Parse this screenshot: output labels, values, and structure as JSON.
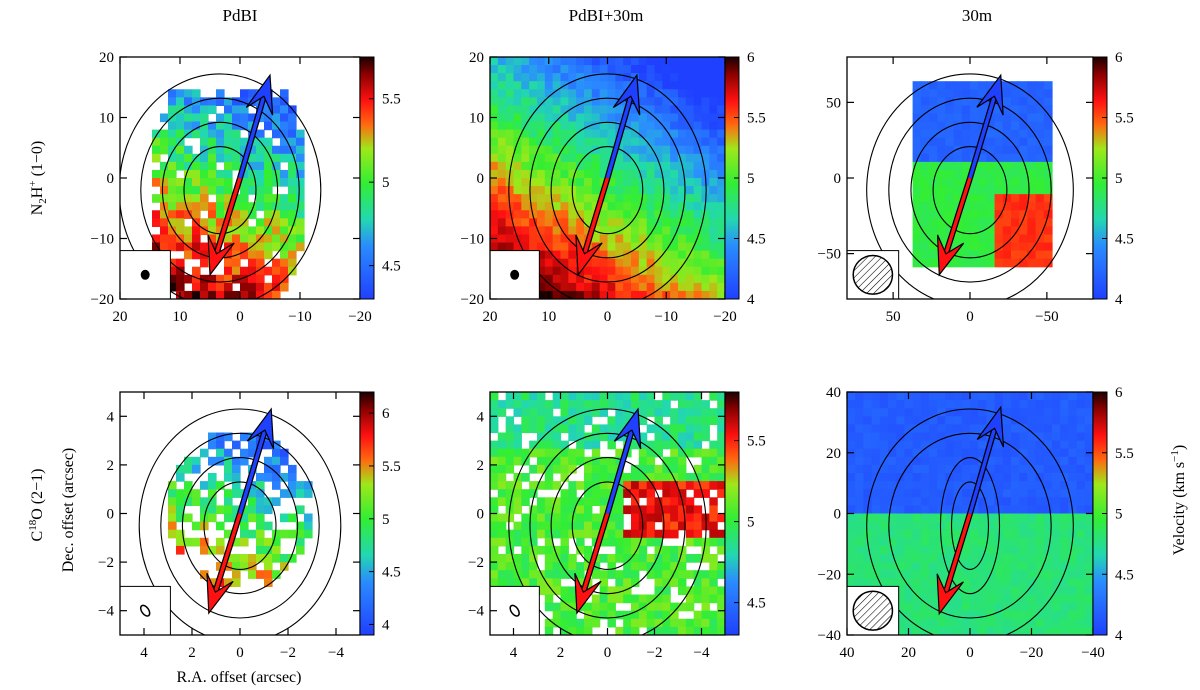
{
  "column_titles": [
    "PdBI",
    "PdBI+30m",
    "30m"
  ],
  "row_labels": {
    "top": {
      "prefix": "N",
      "sub": "2",
      "mid": "H",
      "sup": "+",
      "suffix": " (1−0)"
    },
    "bottom": {
      "prefix": "C",
      "sup": "18",
      "suffix": "O (2−1)"
    }
  },
  "axis_labels": {
    "xlabel": "R.A. offset (arcsec)",
    "ylabel": "Dec. offset (arcsec)",
    "colorbar_label": "Velocity (km s",
    "colorbar_label_sup": "−1",
    "colorbar_label_end": ")"
  },
  "colors": {
    "blue": "#2040ff",
    "green": "#33ee33",
    "red": "#ff1111",
    "dark_red": "#2a0000"
  },
  "chart_data": [
    {
      "type": "heatmap",
      "panel": "top-left",
      "title": "PdBI",
      "xlim": [
        20,
        -20
      ],
      "ylim": [
        -20,
        20
      ],
      "xticks": [
        20,
        10,
        0,
        -10,
        -20
      ],
      "yticks": [
        -20,
        -10,
        0,
        10,
        20
      ],
      "xticklabels": [
        "20",
        "10",
        "0",
        "−10",
        "−20"
      ],
      "yticklabels": [
        "−20",
        "−10",
        "0",
        "10",
        "20"
      ],
      "cbar_range": [
        4.3,
        5.75
      ],
      "cbar_ticks": [
        4.5,
        5,
        5.5
      ],
      "cbar_ticklabels": [
        "4.5",
        "5",
        "5.5"
      ],
      "outflow_center": [
        0,
        0
      ],
      "blue_tip": [
        -5,
        17
      ],
      "red_tip": [
        5,
        -16
      ],
      "beam": "filled"
    },
    {
      "type": "heatmap",
      "panel": "top-middle",
      "title": "PdBI+30m",
      "xlim": [
        20,
        -20
      ],
      "ylim": [
        -20,
        20
      ],
      "xticks": [
        20,
        10,
        0,
        -10,
        -20
      ],
      "yticks": [
        -20,
        -10,
        0,
        10,
        20
      ],
      "xticklabels": [
        "20",
        "10",
        "0",
        "−10",
        "−20"
      ],
      "yticklabels": [
        "−20",
        "−10",
        "0",
        "10",
        "20"
      ],
      "cbar_range": [
        4,
        6
      ],
      "cbar_ticks": [
        4,
        4.5,
        5,
        5.5,
        6
      ],
      "cbar_ticklabels": [
        "4",
        "4.5",
        "5",
        "5.5",
        "6"
      ],
      "outflow_center": [
        0,
        0
      ],
      "blue_tip": [
        -5,
        17
      ],
      "red_tip": [
        5,
        -16
      ],
      "beam": "filled"
    },
    {
      "type": "heatmap",
      "panel": "top-right",
      "title": "30m",
      "xlim": [
        80,
        -80
      ],
      "ylim": [
        -80,
        80
      ],
      "xticks": [
        50,
        0,
        -50
      ],
      "yticks": [
        -50,
        0,
        50
      ],
      "xticklabels": [
        "50",
        "0",
        "−50"
      ],
      "yticklabels": [
        "−50",
        "0",
        "50"
      ],
      "cbar_range": [
        4,
        6
      ],
      "cbar_ticks": [
        4,
        4.5,
        5,
        5.5,
        6
      ],
      "cbar_ticklabels": [
        "4",
        "4.5",
        "5",
        "5.5",
        "6"
      ],
      "outflow_center": [
        0,
        0
      ],
      "blue_tip": [
        -20,
        68
      ],
      "red_tip": [
        20,
        -64
      ],
      "beam": "hatched"
    },
    {
      "type": "heatmap",
      "panel": "bottom-left",
      "title": "",
      "xlim": [
        5,
        -5
      ],
      "ylim": [
        -5,
        5
      ],
      "xticks": [
        4,
        2,
        0,
        -2,
        -4
      ],
      "yticks": [
        -4,
        -2,
        0,
        2,
        4
      ],
      "xticklabels": [
        "4",
        "2",
        "0",
        "−2",
        "−4"
      ],
      "yticklabels": [
        "−4",
        "−2",
        "0",
        "2",
        "4"
      ],
      "cbar_range": [
        3.9,
        6.2
      ],
      "cbar_ticks": [
        4,
        4.5,
        5,
        5.5,
        6
      ],
      "cbar_ticklabels": [
        "4",
        "4.5",
        "5",
        "5.5",
        "6"
      ],
      "outflow_center": [
        0,
        0
      ],
      "blue_tip": [
        -1.3,
        4.3
      ],
      "red_tip": [
        1.3,
        -4.1
      ],
      "beam": "ellipse"
    },
    {
      "type": "heatmap",
      "panel": "bottom-middle",
      "title": "",
      "xlim": [
        5,
        -5
      ],
      "ylim": [
        -5,
        5
      ],
      "xticks": [
        4,
        2,
        0,
        -2,
        -4
      ],
      "yticks": [
        -4,
        -2,
        0,
        2,
        4
      ],
      "xticklabels": [
        "4",
        "2",
        "0",
        "−2",
        "−4"
      ],
      "yticklabels": [
        "−4",
        "−2",
        "0",
        "2",
        "4"
      ],
      "cbar_range": [
        4.3,
        5.8
      ],
      "cbar_ticks": [
        4.5,
        5,
        5.5
      ],
      "cbar_ticklabels": [
        "4.5",
        "5",
        "5.5"
      ],
      "outflow_center": [
        0,
        0
      ],
      "blue_tip": [
        -1.3,
        4.3
      ],
      "red_tip": [
        1.3,
        -4.1
      ],
      "beam": "ellipse"
    },
    {
      "type": "heatmap",
      "panel": "bottom-right",
      "title": "",
      "xlim": [
        40,
        -40
      ],
      "ylim": [
        -40,
        40
      ],
      "xticks": [
        40,
        20,
        0,
        -20,
        -40
      ],
      "yticks": [
        -40,
        -20,
        0,
        20,
        40
      ],
      "xticklabels": [
        "40",
        "20",
        "0",
        "−20",
        "−40"
      ],
      "yticklabels": [
        "−40",
        "−20",
        "0",
        "20",
        "40"
      ],
      "cbar_range": [
        4,
        6
      ],
      "cbar_ticks": [
        4,
        4.5,
        5,
        5.5,
        6
      ],
      "cbar_ticklabels": [
        "4",
        "4.5",
        "5",
        "5.5",
        "6"
      ],
      "outflow_center": [
        0,
        0
      ],
      "blue_tip": [
        -10,
        35
      ],
      "red_tip": [
        10,
        -33
      ],
      "beam": "hatched"
    }
  ]
}
